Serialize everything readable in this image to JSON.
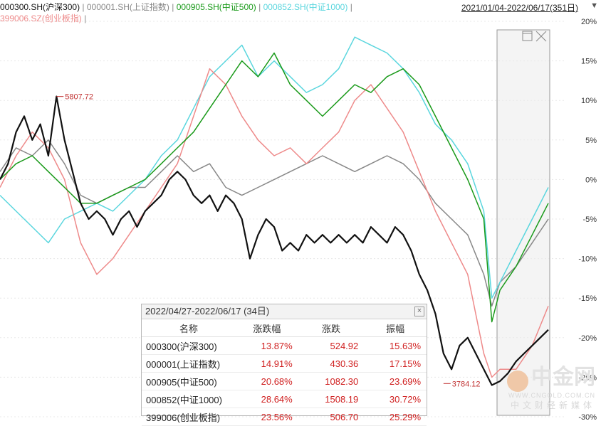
{
  "legend": [
    {
      "label": "000300.SH(沪深300)",
      "color": "#111111"
    },
    {
      "label": "000001.SH(上证指数)",
      "color": "#888888"
    },
    {
      "label": "000905.SH(中证500)",
      "color": "#1a9a1a"
    },
    {
      "label": "000852.SH(中证1000)",
      "color": "#5ad6de"
    },
    {
      "label": "399006.SZ(创业板指)",
      "color": "#ee8a8a"
    }
  ],
  "legend_sep": "|",
  "date_range": "2021/01/04-2022/06/17(351日)",
  "dropdown_icon": "▼",
  "chart_data": {
    "type": "line",
    "y_unit": "%",
    "ylim": [
      -30,
      20
    ],
    "yticks": [
      "20%",
      "15%",
      "10%",
      "5%",
      "0%",
      "-5%",
      "-10%",
      "-15%",
      "-20%",
      "-25%",
      "-30%"
    ],
    "yticks_values": [
      20,
      15,
      10,
      5,
      0,
      -5,
      -10,
      -15,
      -20,
      -25,
      -30
    ],
    "annotations": [
      {
        "text": "5807.72",
        "x": 35,
        "y": 10.5,
        "series": "000300.SH(沪深300)"
      },
      {
        "text": "3784.12",
        "x": 275,
        "y": -25.8,
        "series": "000300.SH(沪深300)"
      }
    ],
    "series": [
      {
        "name": "000300.SH(沪深300)",
        "color": "#111111",
        "width": 2.2,
        "points": [
          [
            0,
            0
          ],
          [
            5,
            2
          ],
          [
            10,
            6
          ],
          [
            15,
            8
          ],
          [
            20,
            5
          ],
          [
            25,
            7
          ],
          [
            30,
            3
          ],
          [
            35,
            10.5
          ],
          [
            40,
            5
          ],
          [
            45,
            1
          ],
          [
            50,
            -3
          ],
          [
            55,
            -5
          ],
          [
            60,
            -4
          ],
          [
            65,
            -5
          ],
          [
            70,
            -7
          ],
          [
            75,
            -5
          ],
          [
            80,
            -4
          ],
          [
            85,
            -6
          ],
          [
            90,
            -4
          ],
          [
            95,
            -3
          ],
          [
            100,
            -2
          ],
          [
            105,
            0
          ],
          [
            110,
            1
          ],
          [
            115,
            0
          ],
          [
            120,
            -2
          ],
          [
            125,
            -3
          ],
          [
            130,
            -2
          ],
          [
            135,
            -4
          ],
          [
            140,
            -2
          ],
          [
            145,
            -3
          ],
          [
            150,
            -5
          ],
          [
            155,
            -10
          ],
          [
            160,
            -7
          ],
          [
            165,
            -5
          ],
          [
            170,
            -6
          ],
          [
            175,
            -9
          ],
          [
            180,
            -8
          ],
          [
            185,
            -9
          ],
          [
            190,
            -7
          ],
          [
            195,
            -8
          ],
          [
            200,
            -7
          ],
          [
            205,
            -8
          ],
          [
            210,
            -7
          ],
          [
            215,
            -8
          ],
          [
            220,
            -7
          ],
          [
            225,
            -8
          ],
          [
            230,
            -6
          ],
          [
            235,
            -7
          ],
          [
            240,
            -8
          ],
          [
            245,
            -6
          ],
          [
            250,
            -7
          ],
          [
            255,
            -9
          ],
          [
            260,
            -12
          ],
          [
            265,
            -14
          ],
          [
            270,
            -17
          ],
          [
            275,
            -22
          ],
          [
            280,
            -24
          ],
          [
            285,
            -21
          ],
          [
            290,
            -20
          ],
          [
            295,
            -22
          ],
          [
            300,
            -24
          ],
          [
            305,
            -26
          ],
          [
            310,
            -25.5
          ],
          [
            315,
            -24.5
          ],
          [
            320,
            -23
          ],
          [
            325,
            -22
          ],
          [
            330,
            -21
          ],
          [
            335,
            -20
          ],
          [
            340,
            -19
          ]
        ]
      },
      {
        "name": "000001.SH(上证指数)",
        "color": "#888888",
        "width": 1.5,
        "points": [
          [
            0,
            1
          ],
          [
            10,
            4
          ],
          [
            20,
            3
          ],
          [
            30,
            5
          ],
          [
            40,
            2
          ],
          [
            50,
            -2
          ],
          [
            60,
            -3
          ],
          [
            70,
            -2
          ],
          [
            80,
            -1
          ],
          [
            90,
            -1
          ],
          [
            100,
            1
          ],
          [
            110,
            3
          ],
          [
            120,
            1
          ],
          [
            130,
            2
          ],
          [
            140,
            -1
          ],
          [
            150,
            -2
          ],
          [
            160,
            -1
          ],
          [
            170,
            0
          ],
          [
            180,
            1
          ],
          [
            190,
            2
          ],
          [
            200,
            3
          ],
          [
            210,
            2
          ],
          [
            220,
            1
          ],
          [
            230,
            2
          ],
          [
            240,
            3
          ],
          [
            250,
            2
          ],
          [
            260,
            0
          ],
          [
            270,
            -3
          ],
          [
            280,
            -5
          ],
          [
            290,
            -7
          ],
          [
            300,
            -12
          ],
          [
            305,
            -16
          ],
          [
            310,
            -13
          ],
          [
            320,
            -11
          ],
          [
            330,
            -8
          ],
          [
            340,
            -5
          ]
        ]
      },
      {
        "name": "000905.SH(中证500)",
        "color": "#1a9a1a",
        "width": 1.5,
        "points": [
          [
            0,
            0
          ],
          [
            10,
            2
          ],
          [
            20,
            3
          ],
          [
            30,
            1
          ],
          [
            40,
            -1
          ],
          [
            50,
            -3
          ],
          [
            60,
            -3
          ],
          [
            70,
            -2
          ],
          [
            80,
            -1
          ],
          [
            90,
            0
          ],
          [
            100,
            2
          ],
          [
            110,
            4
          ],
          [
            120,
            6
          ],
          [
            130,
            9
          ],
          [
            140,
            12
          ],
          [
            150,
            15
          ],
          [
            160,
            13
          ],
          [
            170,
            16
          ],
          [
            180,
            12
          ],
          [
            190,
            10
          ],
          [
            200,
            8
          ],
          [
            210,
            10
          ],
          [
            220,
            12
          ],
          [
            230,
            11
          ],
          [
            240,
            13
          ],
          [
            250,
            14
          ],
          [
            260,
            12
          ],
          [
            270,
            8
          ],
          [
            280,
            4
          ],
          [
            290,
            0
          ],
          [
            300,
            -5
          ],
          [
            305,
            -18
          ],
          [
            310,
            -14
          ],
          [
            320,
            -11
          ],
          [
            330,
            -7
          ],
          [
            340,
            -3
          ]
        ]
      },
      {
        "name": "000852.SH(中证1000)",
        "color": "#5ad6de",
        "width": 1.5,
        "points": [
          [
            0,
            -2
          ],
          [
            10,
            -4
          ],
          [
            20,
            -6
          ],
          [
            30,
            -8
          ],
          [
            40,
            -5
          ],
          [
            50,
            -4
          ],
          [
            60,
            -3
          ],
          [
            70,
            -4
          ],
          [
            80,
            -2
          ],
          [
            90,
            0
          ],
          [
            100,
            3
          ],
          [
            110,
            5
          ],
          [
            120,
            9
          ],
          [
            130,
            13
          ],
          [
            140,
            15
          ],
          [
            150,
            17
          ],
          [
            160,
            13
          ],
          [
            170,
            15
          ],
          [
            180,
            13
          ],
          [
            190,
            11
          ],
          [
            200,
            12
          ],
          [
            210,
            14
          ],
          [
            220,
            18
          ],
          [
            230,
            17
          ],
          [
            240,
            16
          ],
          [
            250,
            14
          ],
          [
            260,
            11
          ],
          [
            270,
            7
          ],
          [
            280,
            5
          ],
          [
            290,
            2
          ],
          [
            300,
            -4
          ],
          [
            305,
            -15
          ],
          [
            310,
            -13
          ],
          [
            320,
            -9
          ],
          [
            330,
            -5
          ],
          [
            340,
            -1
          ]
        ]
      },
      {
        "name": "399006.SZ(创业板指)",
        "color": "#ee8a8a",
        "width": 1.5,
        "points": [
          [
            0,
            -1
          ],
          [
            10,
            3
          ],
          [
            20,
            6
          ],
          [
            30,
            4
          ],
          [
            40,
            0
          ],
          [
            50,
            -8
          ],
          [
            60,
            -12
          ],
          [
            70,
            -10
          ],
          [
            80,
            -7
          ],
          [
            90,
            -4
          ],
          [
            100,
            -1
          ],
          [
            110,
            2
          ],
          [
            120,
            8
          ],
          [
            130,
            14
          ],
          [
            140,
            12
          ],
          [
            150,
            8
          ],
          [
            160,
            5
          ],
          [
            170,
            3
          ],
          [
            180,
            4
          ],
          [
            190,
            2
          ],
          [
            200,
            4
          ],
          [
            210,
            6
          ],
          [
            220,
            10
          ],
          [
            230,
            12
          ],
          [
            240,
            9
          ],
          [
            250,
            6
          ],
          [
            260,
            1
          ],
          [
            270,
            -4
          ],
          [
            280,
            -8
          ],
          [
            290,
            -12
          ],
          [
            300,
            -22
          ],
          [
            305,
            -25
          ],
          [
            310,
            -24
          ],
          [
            320,
            -24
          ],
          [
            330,
            -21
          ],
          [
            340,
            -16
          ]
        ]
      }
    ]
  },
  "stats_table": {
    "title": "2022/04/27-2022/06/17 (34日)",
    "close": "×",
    "headers": [
      "名称",
      "涨跌幅",
      "涨跌",
      "振幅"
    ],
    "rows": [
      [
        "000300(沪深300)",
        "13.87%",
        "524.92",
        "15.63%"
      ],
      [
        "000001(上证指数)",
        "14.91%",
        "430.36",
        "17.15%"
      ],
      [
        "000905(中证500)",
        "20.68%",
        "1082.30",
        "23.69%"
      ],
      [
        "000852(中证1000)",
        "28.64%",
        "1508.19",
        "30.72%"
      ],
      [
        "399006(创业板指)",
        "23.56%",
        "506.70",
        "25.29%"
      ]
    ]
  },
  "watermark": {
    "brand": "中金网",
    "url": "WWW.CNGOLD.COM.CN",
    "sub": "中文财经新媒体"
  }
}
